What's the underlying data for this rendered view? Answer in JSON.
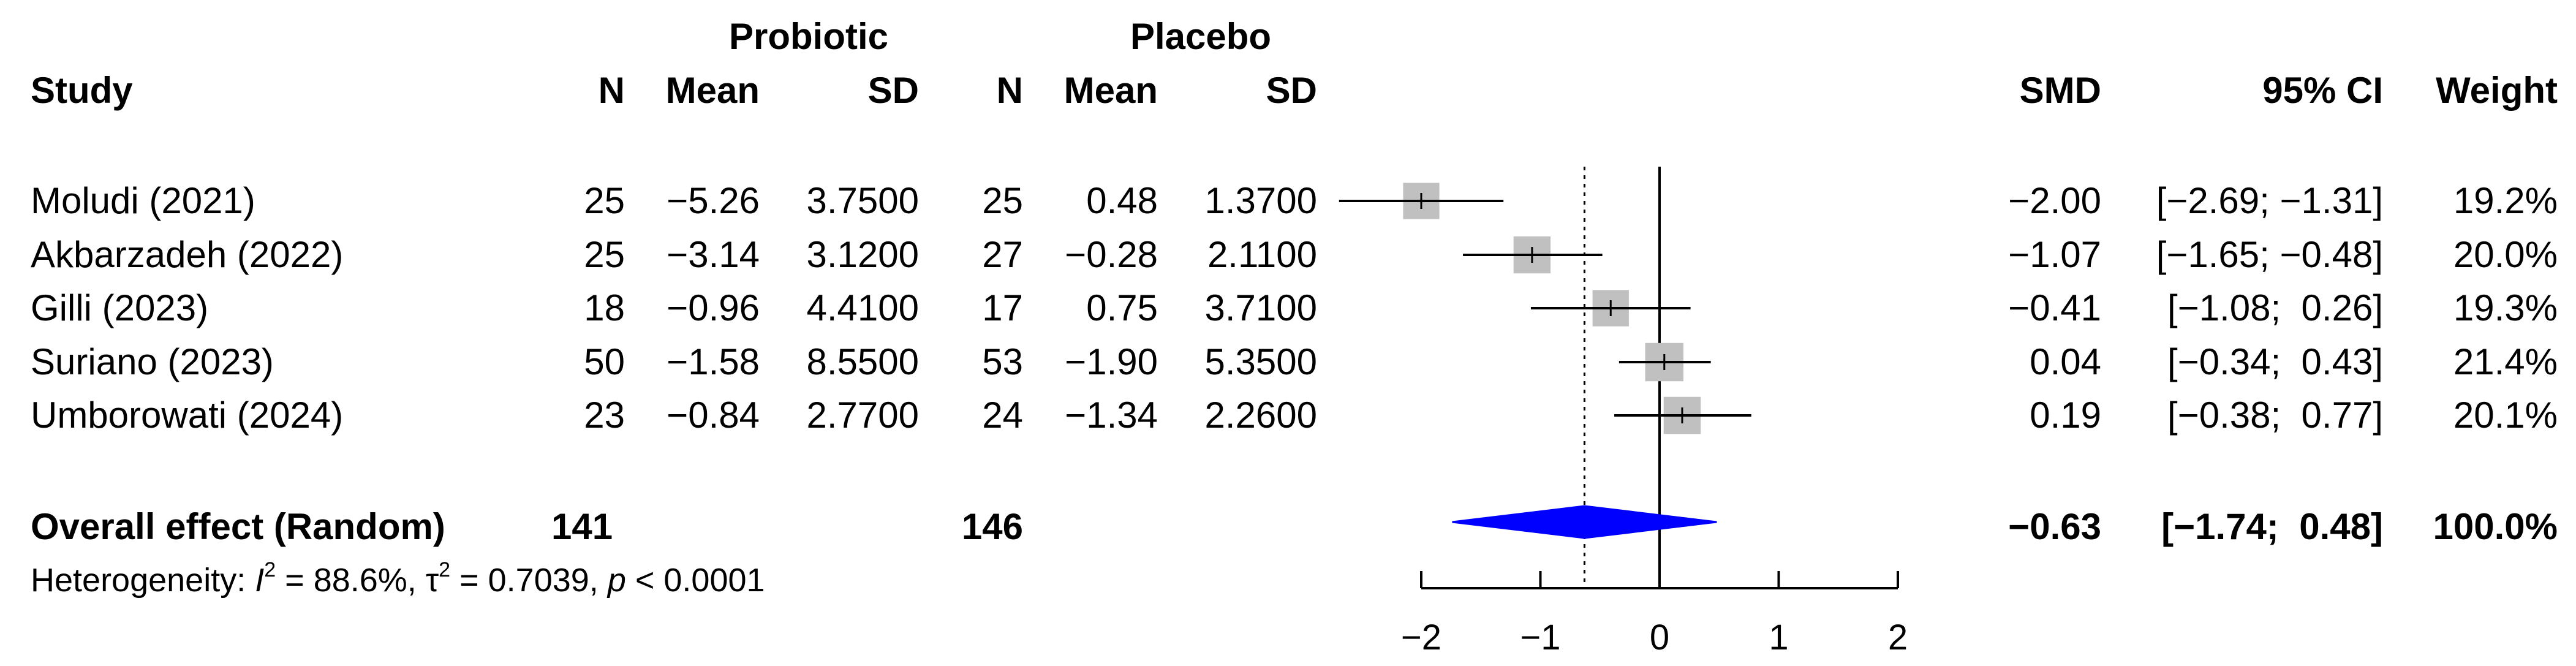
{
  "headers": {
    "group1": "Probiotic",
    "group2": "Placebo",
    "study": "Study",
    "n": "N",
    "mean": "Mean",
    "sd": "SD",
    "smd": "SMD",
    "ci": "95% CI",
    "weight": "Weight"
  },
  "studies": [
    {
      "name": "Moludi (2021)",
      "n1": "25",
      "mean1": "−5.26",
      "sd1": "3.7500",
      "n2": "25",
      "mean2": "0.48",
      "sd2": "1.3700",
      "smd": "−2.00",
      "ci": "[−2.69; −1.31]",
      "weight": "19.2%"
    },
    {
      "name": "Akbarzadeh (2022)",
      "n1": "25",
      "mean1": "−3.14",
      "sd1": "3.1200",
      "n2": "27",
      "mean2": "−0.28",
      "sd2": "2.1100",
      "smd": "−1.07",
      "ci": "[−1.65; −0.48]",
      "weight": "20.0%"
    },
    {
      "name": "Gilli (2023)",
      "n1": "18",
      "mean1": "−0.96",
      "sd1": "4.4100",
      "n2": "17",
      "mean2": "0.75",
      "sd2": "3.7100",
      "smd": "−0.41",
      "ci": "[−1.08;  0.26]",
      "weight": "19.3%"
    },
    {
      "name": "Suriano (2023)",
      "n1": "50",
      "mean1": "−1.58",
      "sd1": "8.5500",
      "n2": "53",
      "mean2": "−1.90",
      "sd2": "5.3500",
      "smd": "0.04",
      "ci": "[−0.34;  0.43]",
      "weight": "21.4%"
    },
    {
      "name": "Umborowati (2024)",
      "n1": "23",
      "mean1": "−0.84",
      "sd1": "2.7700",
      "n2": "24",
      "mean2": "−1.34",
      "sd2": "2.2600",
      "smd": "0.19",
      "ci": "[−0.38;  0.77]",
      "weight": "20.1%"
    }
  ],
  "overall": {
    "label": "Overall effect (Random)",
    "n1": "141",
    "n2": "146",
    "smd": "−0.63",
    "ci": "[−1.74;  0.48]",
    "weight": "100.0%"
  },
  "heterogeneity": {
    "prefix": "Heterogeneity: ",
    "i2_symbol": "I",
    "i2_value": " = 88.6%, ",
    "tau2_symbol": "τ",
    "tau2_value": " = 0.7039, ",
    "p_symbol": "p",
    "p_value": " < 0.0001"
  },
  "chart_data": {
    "type": "forest",
    "title": "",
    "xlabel": "",
    "ylabel": "",
    "xlim": [
      -2,
      2
    ],
    "xticks": [
      -2,
      -1,
      0,
      1,
      2
    ],
    "reference_line": 0,
    "pooled_line": -0.63,
    "studies": [
      {
        "name": "Moludi (2021)",
        "smd": -2.0,
        "lower": -2.69,
        "upper": -1.31,
        "weight": 19.2
      },
      {
        "name": "Akbarzadeh (2022)",
        "smd": -1.07,
        "lower": -1.65,
        "upper": -0.48,
        "weight": 20.0
      },
      {
        "name": "Gilli (2023)",
        "smd": -0.41,
        "lower": -1.08,
        "upper": 0.26,
        "weight": 19.3
      },
      {
        "name": "Suriano (2023)",
        "smd": 0.04,
        "lower": -0.34,
        "upper": 0.43,
        "weight": 21.4
      },
      {
        "name": "Umborowati (2024)",
        "smd": 0.19,
        "lower": -0.38,
        "upper": 0.77,
        "weight": 20.1
      }
    ],
    "overall": {
      "smd": -0.63,
      "lower": -1.74,
      "upper": 0.48
    },
    "colors": {
      "box": "#c0c0c0",
      "diamond": "#0000ff",
      "lines": "#000000"
    }
  }
}
